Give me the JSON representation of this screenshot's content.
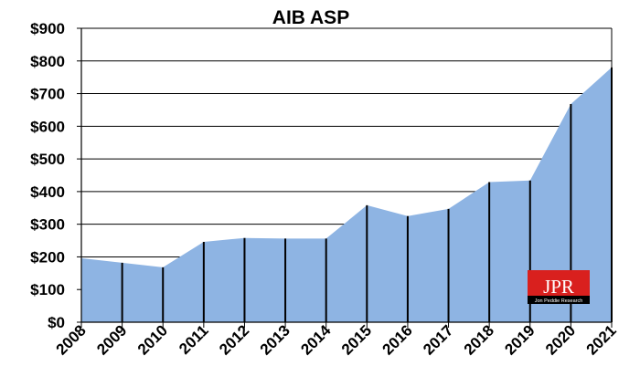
{
  "chart_data": {
    "type": "area",
    "title": "AIB ASP",
    "xlabel": "",
    "ylabel": "",
    "categories": [
      "2008",
      "2009",
      "2010",
      "2011",
      "2012",
      "2013",
      "2014",
      "2015",
      "2016",
      "2017",
      "2018",
      "2019",
      "2020",
      "2021"
    ],
    "values": [
      196,
      182,
      168,
      246,
      258,
      256,
      256,
      358,
      325,
      347,
      429,
      434,
      668,
      780
    ],
    "ylim": [
      0,
      900
    ],
    "yticks": [
      0,
      100,
      200,
      300,
      400,
      500,
      600,
      700,
      800,
      900
    ],
    "ytick_labels": [
      "$0",
      "$100",
      "$200",
      "$300",
      "$400",
      "$500",
      "$600",
      "$700",
      "$800",
      "$900"
    ],
    "grid": true,
    "fill_color": "#8EB4E3",
    "drop_line_color": "#000000",
    "legend": "none"
  },
  "logo": {
    "main_text": "JPR",
    "sub_text": "Jon Peddie Research",
    "color": "#D9201E"
  }
}
